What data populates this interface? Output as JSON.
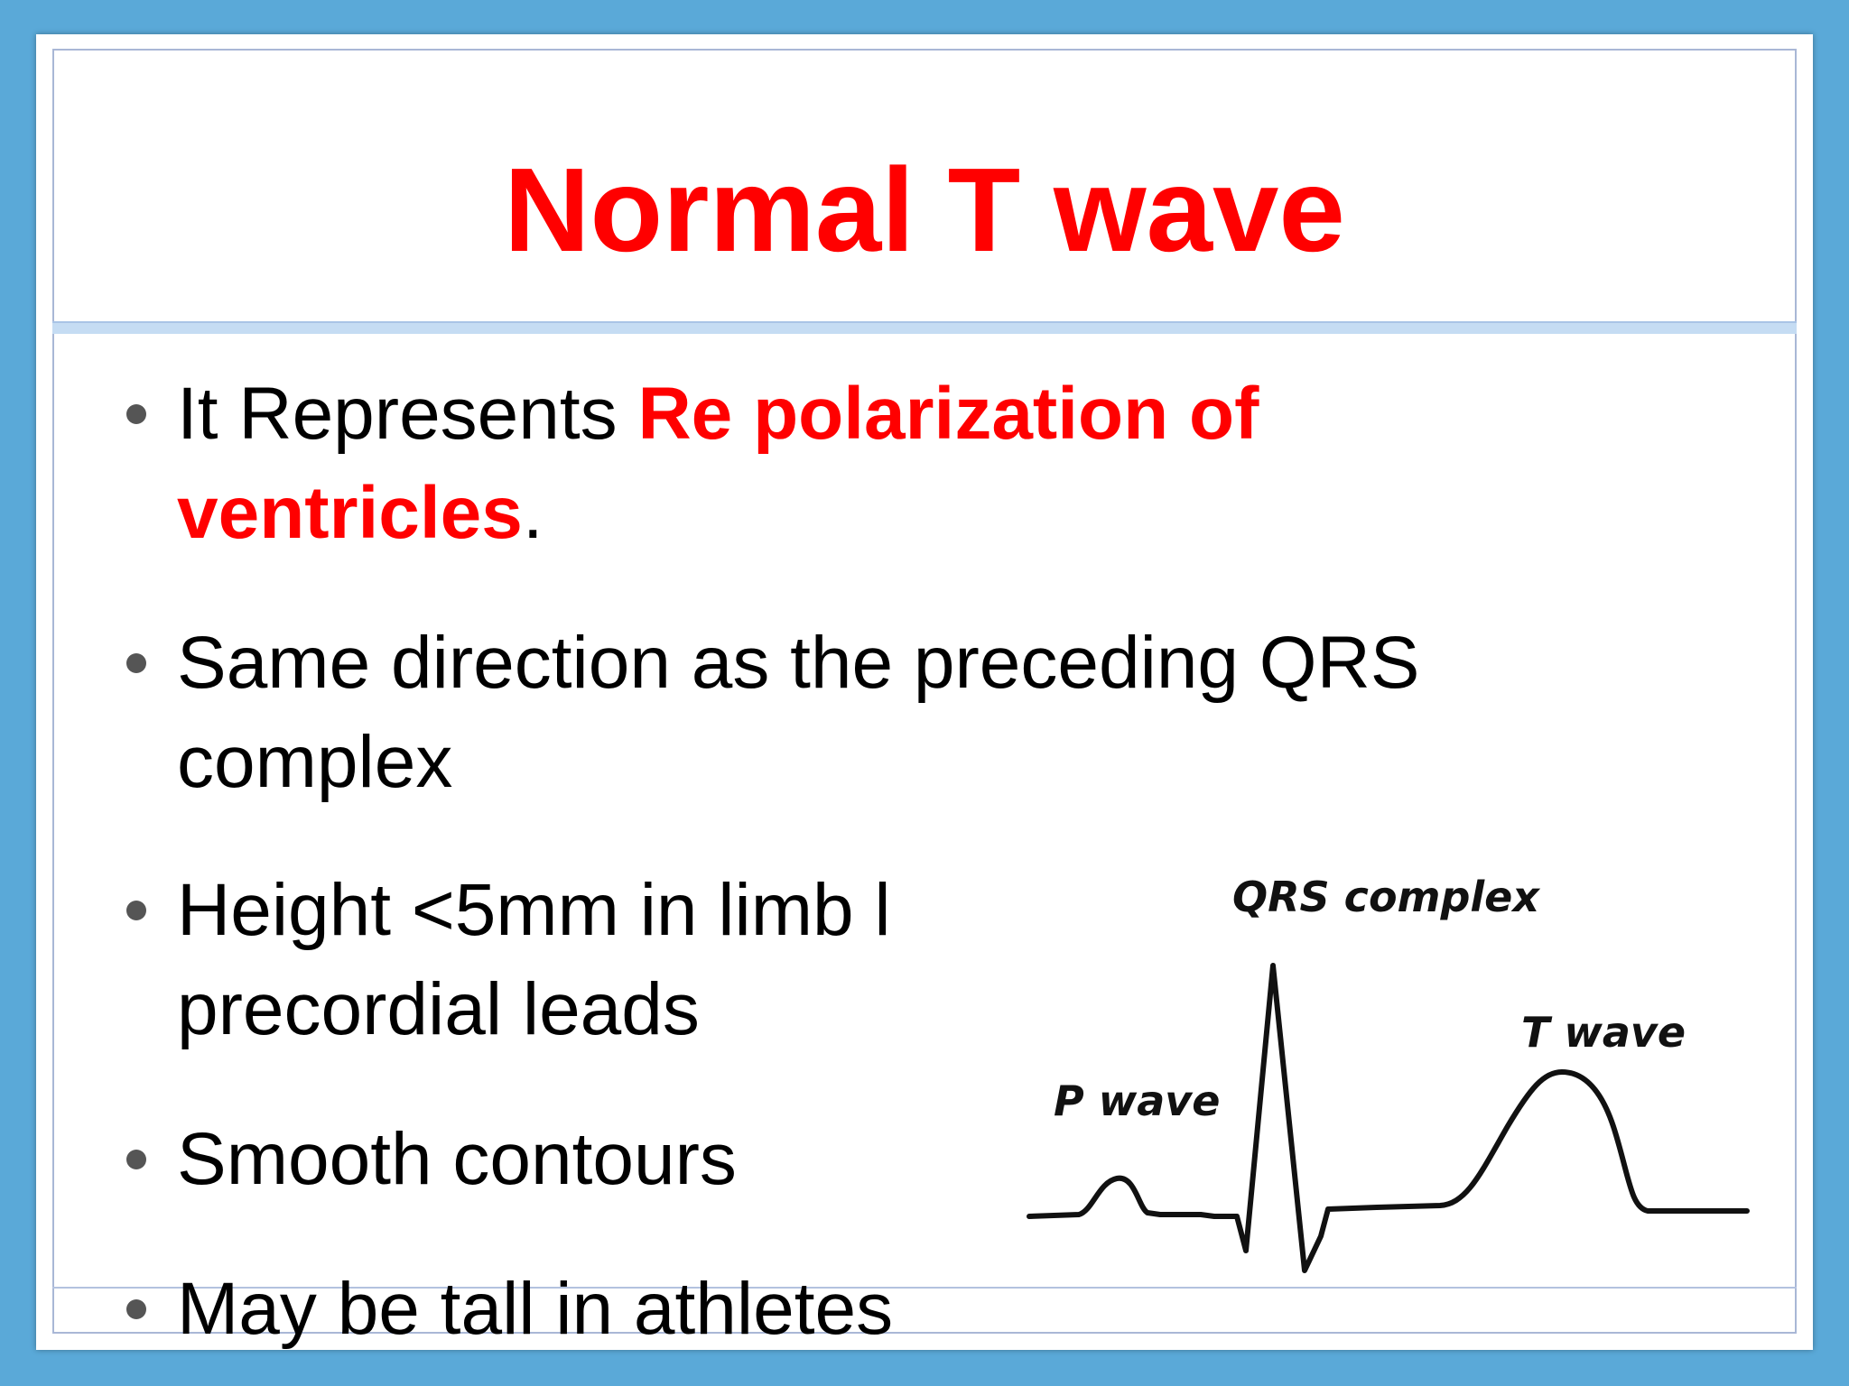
{
  "slide": {
    "title": "Normal T wave",
    "bullets": [
      {
        "line1_plain": "It Represents ",
        "line1_red": "Re polarization of",
        "line2_red": "ventricles",
        "line2_plain": "."
      },
      {
        "line1": "Same direction as the preceding QRS",
        "line2": "complex"
      },
      {
        "line1": "Height <5mm in limb l",
        "line2": "precordial leads"
      },
      {
        "line1": "Smooth contours"
      },
      {
        "line1": "May be tall in athletes"
      }
    ]
  },
  "diagram": {
    "qrs_label": "QRS complex",
    "t_label": "T wave",
    "p_label": "P wave"
  },
  "colors": {
    "background": "#5aa9d8",
    "title": "#ff0000",
    "highlight": "#ff0000",
    "text": "#000000"
  }
}
